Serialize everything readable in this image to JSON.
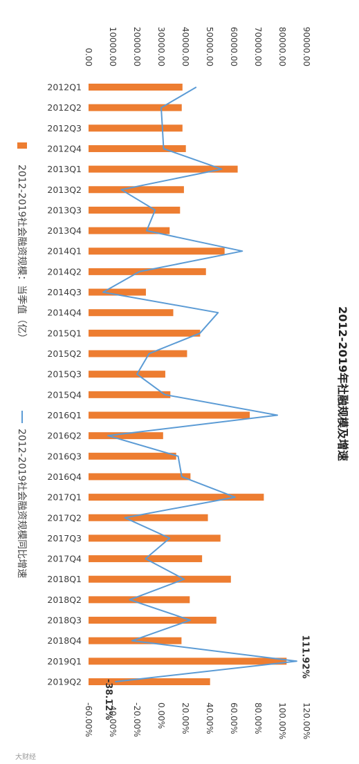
{
  "chart_data": {
    "type": "bar+line",
    "title": "2012-2019年社融规模及增速",
    "categories": [
      "2012Q1",
      "2012Q2",
      "2012Q3",
      "2012Q4",
      "2013Q1",
      "2013Q2",
      "2013Q3",
      "2013Q4",
      "2014Q1",
      "2014Q2",
      "2014Q3",
      "2014Q4",
      "2015Q1",
      "2015Q2",
      "2015Q3",
      "2015Q4",
      "2016Q1",
      "2016Q2",
      "2016Q3",
      "2016Q4",
      "2017Q1",
      "2017Q2",
      "2017Q3",
      "2017Q4",
      "2018Q1",
      "2018Q2",
      "2018Q3",
      "2018Q4",
      "2019Q1",
      "2019Q2"
    ],
    "series": [
      {
        "name": "2012-2019社会融资规模：当季值（亿）",
        "kind": "bar",
        "axis": "primary",
        "color": "#ED7D31",
        "values": [
          38800,
          38500,
          38800,
          40200,
          61600,
          39400,
          37800,
          33500,
          56200,
          48500,
          23700,
          35000,
          46100,
          40700,
          31700,
          33800,
          66600,
          30800,
          36200,
          42100,
          72400,
          49300,
          54500,
          46900,
          58800,
          41800,
          52800,
          38400,
          81800,
          50200
        ]
      },
      {
        "name": "2012-2019社会融资规模同比增速",
        "kind": "line",
        "axis": "secondary",
        "color": "#5B9BD5",
        "values": [
          29.0,
          0.0,
          1.0,
          2.0,
          50.0,
          -33.0,
          -5.0,
          -12.0,
          67.0,
          -18.0,
          -48.0,
          47.0,
          32.0,
          -10.0,
          -20.0,
          3.0,
          96.0,
          -44.0,
          14.0,
          17.0,
          61.0,
          -30.0,
          7.0,
          -13.0,
          19.0,
          -26.0,
          24.0,
          -24.0,
          111.92,
          -38.12
        ]
      }
    ],
    "primary_axis": {
      "min": 0,
      "max": 90000,
      "step": 10000,
      "tick_labels": [
        "0.00",
        "10000.00",
        "20000.00",
        "30000.00",
        "40000.00",
        "50000.00",
        "60000.00",
        "70000.00",
        "80000.00",
        "90000.00"
      ]
    },
    "secondary_axis": {
      "min": -60,
      "max": 120,
      "step": 20,
      "tick_labels": [
        "-60.00%",
        "-40.00%",
        "-20.00%",
        "0.00%",
        "20.00%",
        "40.00%",
        "60.00%",
        "80.00%",
        "100.00%",
        "120.00%"
      ]
    },
    "annotations": [
      {
        "label": "111.92%",
        "category": "2019Q1"
      },
      {
        "label": "-38.12%",
        "category": "2019Q2"
      }
    ],
    "legend_placement": "left",
    "orientation": "rotated-90-clockwise",
    "grid": false
  },
  "watermark": "大财经"
}
